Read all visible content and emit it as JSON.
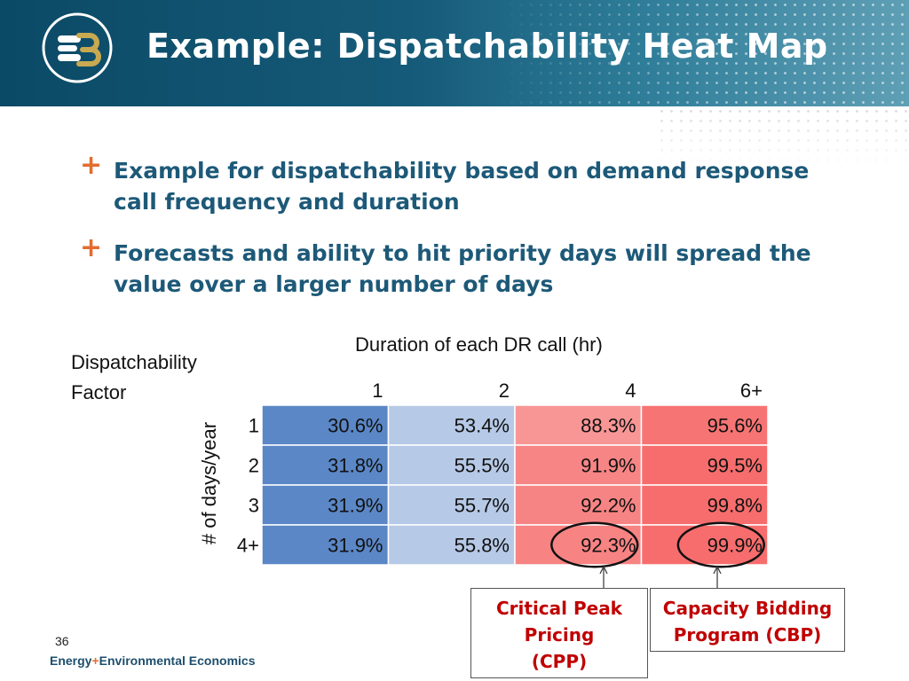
{
  "slide": {
    "title": "Example: Dispatchability Heat Map",
    "page_number": "36",
    "footer": {
      "part1": "Energy",
      "plus": "+",
      "part2": "Environmental Economics"
    }
  },
  "bullets": [
    {
      "marker": "+",
      "text": "Example for dispatchability based on demand response call frequency and duration"
    },
    {
      "marker": "+",
      "text": "Forecasts and ability to hit priority days will spread the value over a larger number of days"
    }
  ],
  "callouts": [
    {
      "text": "Critical Peak Pricing (CPP)",
      "lines": [
        "Critical Peak",
        "Pricing",
        "(CPP)"
      ]
    },
    {
      "text": "Capacity Bidding Program (CBP)",
      "lines": [
        "Capacity Bidding",
        "Program (CBP)"
      ]
    }
  ],
  "colors": {
    "header_dark": "#0b4a66",
    "accent_orange": "#e36c2f",
    "bullet_text": "#1d5978",
    "callout_text": "#c00000",
    "blue_cell": "#5b87c6",
    "lightblue_cell": "#b6c9e6",
    "pink_cell": "#f8a6a6",
    "red_cell": "#f76d6d"
  },
  "chart_data": {
    "type": "heatmap",
    "title": "Duration of each DR call (hr)",
    "corner_label": [
      "Dispatchability",
      "Factor"
    ],
    "xlabel": "Duration of each DR call (hr)",
    "ylabel": "# of days/year",
    "columns": [
      "1",
      "2",
      "4",
      "6+"
    ],
    "rows": [
      "1",
      "2",
      "3",
      "4+"
    ],
    "values": [
      [
        30.6,
        53.4,
        88.3,
        95.6
      ],
      [
        31.8,
        55.5,
        91.9,
        99.5
      ],
      [
        31.9,
        55.7,
        92.2,
        99.8
      ],
      [
        31.9,
        55.8,
        92.3,
        99.9
      ]
    ],
    "labels": [
      [
        "30.6%",
        "53.4%",
        "88.3%",
        "95.6%"
      ],
      [
        "31.8%",
        "55.5%",
        "91.9%",
        "99.5%"
      ],
      [
        "31.9%",
        "55.7%",
        "92.2%",
        "99.8%"
      ],
      [
        "31.9%",
        "55.8%",
        "92.3%",
        "99.9%"
      ]
    ],
    "highlighted_cells": [
      {
        "row": "4+",
        "column": "4",
        "callout": "Critical Peak Pricing (CPP)"
      },
      {
        "row": "4+",
        "column": "6+",
        "callout": "Capacity Bidding Program (CBP)"
      }
    ]
  }
}
